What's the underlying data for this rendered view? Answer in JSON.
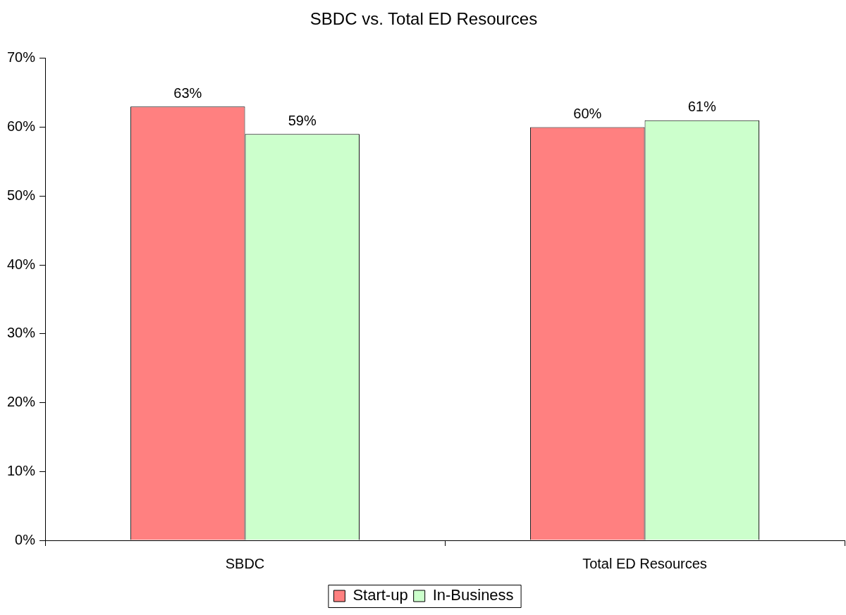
{
  "chart_data": {
    "type": "bar",
    "title": "SBDC vs. Total ED Resources",
    "categories": [
      "SBDC",
      "Total ED Resources"
    ],
    "series": [
      {
        "name": "Start-up",
        "color": "#ff8080",
        "values": [
          63,
          60
        ],
        "value_labels": [
          "63%",
          "60%"
        ]
      },
      {
        "name": "In-Business",
        "color": "#ccffcc",
        "values": [
          59,
          61
        ],
        "value_labels": [
          "59%",
          "61%"
        ]
      }
    ],
    "ylim": [
      0,
      70
    ],
    "yticks": [
      {
        "value": 0,
        "label": "0%"
      },
      {
        "value": 10,
        "label": "10%"
      },
      {
        "value": 20,
        "label": "20%"
      },
      {
        "value": 30,
        "label": "30%"
      },
      {
        "value": 40,
        "label": "40%"
      },
      {
        "value": 50,
        "label": "50%"
      },
      {
        "value": 60,
        "label": "60%"
      },
      {
        "value": 70,
        "label": "70%"
      }
    ],
    "grid": false,
    "legend": "bottom"
  }
}
